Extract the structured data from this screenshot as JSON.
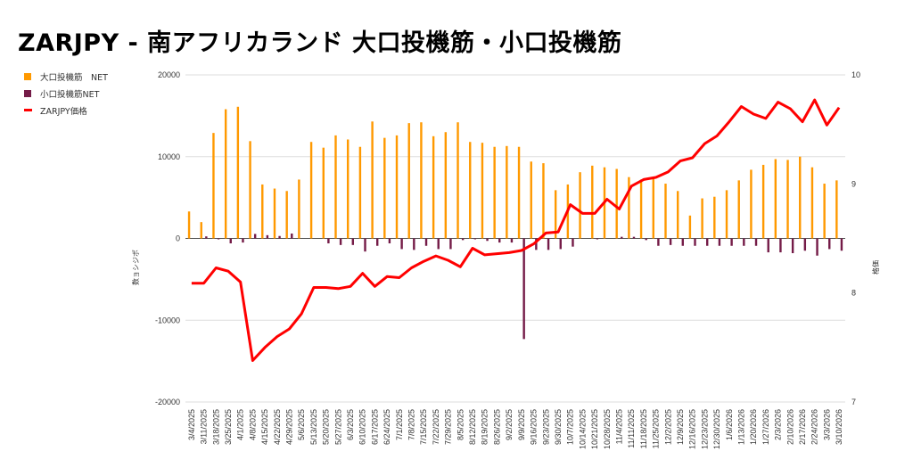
{
  "title": "ZARJPY - 南アフリカランド 大口投機筋・小口投機筋",
  "chart_data": {
    "type": "bar",
    "title": "ZARJPY - 南アフリカランド 大口投機筋・小口投機筋",
    "ylabel": "数ョシジポ",
    "y2label": "格価",
    "ylim": [
      -20000,
      20000
    ],
    "y2lim": [
      7,
      10
    ],
    "yticks": [
      "20000",
      "10000",
      "0",
      "-10000",
      "-20000"
    ],
    "y2ticks": [
      "10",
      "9",
      "8",
      "7"
    ],
    "legend_position": "top-left",
    "categories": [
      "3/4/2025",
      "3/11/2025",
      "3/18/2025",
      "3/25/2025",
      "4/1/2025",
      "4/8/2025",
      "4/15/2025",
      "4/22/2025",
      "4/29/2025",
      "5/6/2025",
      "5/13/2025",
      "5/20/2025",
      "5/27/2025",
      "6/3/2025",
      "6/10/2025",
      "6/17/2025",
      "6/24/2025",
      "7/1/2025",
      "7/8/2025",
      "7/15/2025",
      "7/22/2025",
      "7/29/2025",
      "8/5/2025",
      "8/12/2025",
      "8/19/2025",
      "8/26/2025",
      "9/2/2025",
      "9/9/2025",
      "9/16/2025",
      "9/23/2025",
      "9/30/2025",
      "10/7/2025",
      "10/14/2025",
      "10/21/2025",
      "10/28/2025",
      "11/4/2025",
      "11/11/2025",
      "11/18/2025",
      "11/25/2025",
      "12/2/2025",
      "12/9/2025",
      "12/16/2025",
      "12/23/2025",
      "12/30/2025",
      "1/6/2026",
      "1/13/2026",
      "1/20/2026",
      "1/27/2026",
      "2/3/2026",
      "2/10/2026",
      "2/17/2026",
      "2/24/2026",
      "3/3/2026",
      "3/10/2026"
    ],
    "series": [
      {
        "name": "大口投機筋　NET",
        "type": "bar",
        "axis": "left",
        "color": "#ff9900",
        "values": [
          3300,
          2000,
          12900,
          15800,
          16100,
          11900,
          6600,
          6100,
          5800,
          7200,
          11800,
          11100,
          12600,
          12100,
          11200,
          14300,
          12300,
          12600,
          14100,
          14200,
          12500,
          13000,
          14200,
          11800,
          11700,
          11200,
          11300,
          11200,
          9400,
          9200,
          5900,
          6600,
          8100,
          8900,
          8700,
          8500,
          7500,
          7200,
          7400,
          6700,
          5800,
          2800,
          4900,
          5100,
          5900,
          7100,
          8400,
          9000,
          9700,
          9600,
          10000,
          8700,
          6700,
          7100
        ]
      },
      {
        "name": "小口投機筋NET",
        "type": "bar",
        "axis": "left",
        "color": "#741b47",
        "values": [
          0,
          250,
          -100,
          -600,
          -500,
          550,
          400,
          300,
          600,
          0,
          0,
          -600,
          -800,
          -800,
          -1600,
          -900,
          -600,
          -1300,
          -1400,
          -900,
          -1300,
          -1300,
          -200,
          -100,
          -300,
          -500,
          -500,
          -12300,
          -1400,
          -1400,
          -1300,
          -1000,
          0,
          -100,
          0,
          200,
          200,
          -200,
          -900,
          -800,
          -900,
          -900,
          -900,
          -900,
          -900,
          -900,
          -900,
          -1700,
          -1700,
          -1800,
          -1500,
          -2100,
          -1300,
          -1500
        ]
      },
      {
        "name": "ZARJPY価格",
        "type": "line",
        "axis": "right",
        "color": "#ff0000",
        "values": [
          8.09,
          8.09,
          8.23,
          8.2,
          8.1,
          7.38,
          7.5,
          7.6,
          7.67,
          7.81,
          8.05,
          8.05,
          8.04,
          8.06,
          8.18,
          8.06,
          8.15,
          8.14,
          8.23,
          8.29,
          8.34,
          8.3,
          8.24,
          8.41,
          8.35,
          8.36,
          8.37,
          8.39,
          8.45,
          8.55,
          8.56,
          8.81,
          8.73,
          8.73,
          8.86,
          8.77,
          8.98,
          9.04,
          9.06,
          9.11,
          9.21,
          9.24,
          9.37,
          9.44,
          9.57,
          9.71,
          9.64,
          9.6,
          9.75,
          9.69,
          9.57,
          9.77,
          9.54,
          9.7
        ]
      }
    ]
  }
}
